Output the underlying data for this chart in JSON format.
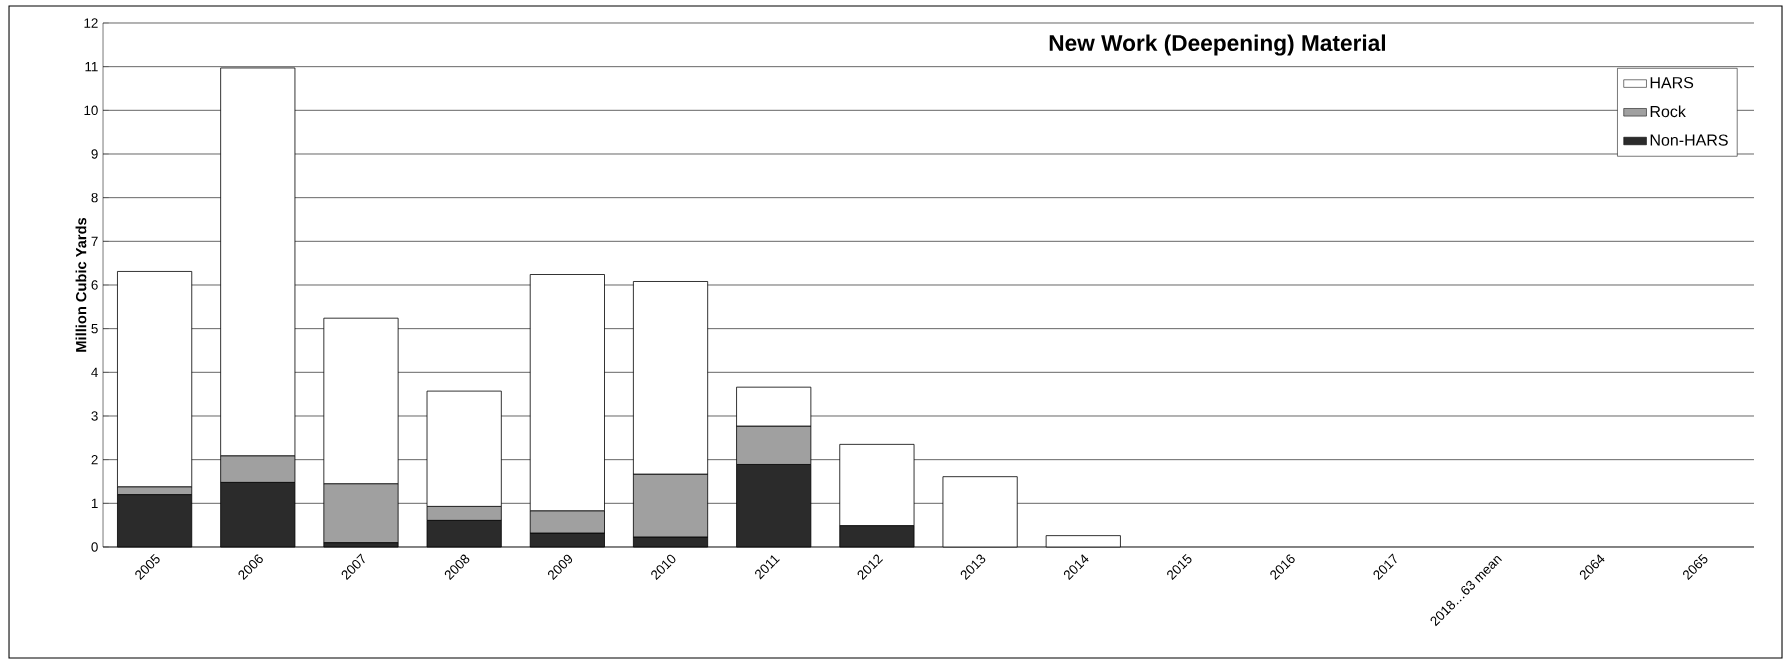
{
  "chart_data": {
    "type": "bar",
    "stacked": true,
    "title": "New Work (Deepening) Material",
    "ylabel": "Million Cubic Yards",
    "categories": [
      "2005",
      "2006",
      "2007",
      "2008",
      "2009",
      "2010",
      "2011",
      "2012",
      "2013",
      "2014",
      "2015",
      "2016",
      "2017",
      "2018…63 mean",
      "2064",
      "2065"
    ],
    "series": [
      {
        "name": "Non-HARS",
        "color": "#2b2b2b",
        "values": [
          1.2,
          1.48,
          0.1,
          0.61,
          0.32,
          0.23,
          1.89,
          0.49,
          null,
          null,
          null,
          null,
          null,
          null,
          null,
          null
        ]
      },
      {
        "name": "Rock",
        "color": "#a0a0a0",
        "values": [
          0.18,
          0.61,
          1.35,
          0.32,
          0.51,
          1.44,
          0.88,
          null,
          null,
          null,
          null,
          null,
          null,
          null,
          null,
          null
        ]
      },
      {
        "name": "HARS",
        "color": "#ffffff",
        "values": [
          4.93,
          8.88,
          3.79,
          2.64,
          5.41,
          4.41,
          0.89,
          1.86,
          1.61,
          0.26,
          null,
          null,
          null,
          null,
          null,
          null
        ]
      }
    ],
    "ylim": [
      0,
      12
    ],
    "yticks": [
      0,
      1,
      2,
      3,
      4,
      5,
      6,
      7,
      8,
      9,
      10,
      11,
      12
    ],
    "grid": "y",
    "legend": "top right"
  }
}
